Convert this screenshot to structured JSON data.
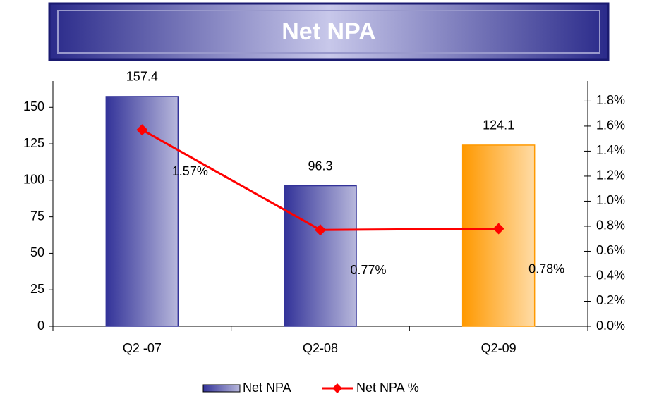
{
  "chart_data": {
    "type": "bar",
    "title": "Net NPA",
    "categories": [
      "Q2 -07",
      "Q2-08",
      "Q2-09"
    ],
    "series": [
      {
        "name": "Net NPA",
        "colors": [
          "#333399",
          "#333399",
          "#ff9900"
        ],
        "values": [
          157.4,
          96.3,
          124.1
        ]
      },
      {
        "name": "Net NPA %",
        "type": "line",
        "axis": "y2",
        "color": "#ff0000",
        "values": [
          1.57,
          0.77,
          0.78
        ],
        "value_labels": [
          "1.57%",
          "0.77%",
          "0.78%"
        ]
      }
    ],
    "ylim": [
      0,
      168
    ],
    "yticks": [
      0,
      25,
      50,
      75,
      100,
      125,
      150
    ],
    "y2lim": [
      0,
      1.96
    ],
    "y2ticks": [
      {
        "value": 0,
        "label": "0.0%"
      },
      {
        "value": 0.2,
        "label": "0.2%"
      },
      {
        "value": 0.4,
        "label": "0.4%"
      },
      {
        "value": 0.6,
        "label": "0.6%"
      },
      {
        "value": 0.8,
        "label": "0.8%"
      },
      {
        "value": 1.0,
        "label": "1.0%"
      },
      {
        "value": 1.2,
        "label": "1.2%"
      },
      {
        "value": 1.4,
        "label": "1.4%"
      },
      {
        "value": 1.6,
        "label": "1.6%"
      },
      {
        "value": 1.8,
        "label": "1.8%"
      }
    ],
    "legend": "bottom"
  }
}
